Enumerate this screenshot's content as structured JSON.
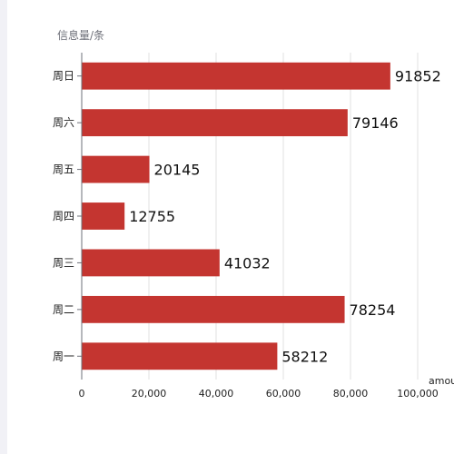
{
  "chart_data": {
    "type": "bar",
    "orientation": "horizontal",
    "ylabel": "信息量/条",
    "xlabel": "amou",
    "categories": [
      "周一",
      "周二",
      "周三",
      "周四",
      "周五",
      "周六",
      "周日"
    ],
    "values": [
      58212,
      78254,
      41032,
      12755,
      20145,
      79146,
      91852
    ],
    "xlim": [
      0,
      100000
    ],
    "xticks": [
      0,
      20000,
      40000,
      60000,
      80000,
      100000
    ],
    "xtick_labels": [
      "0",
      "20,000",
      "40,000",
      "60,000",
      "80,000",
      "100,000"
    ],
    "grid": "vertical",
    "legend": "none",
    "bar_color": "#c43530"
  }
}
